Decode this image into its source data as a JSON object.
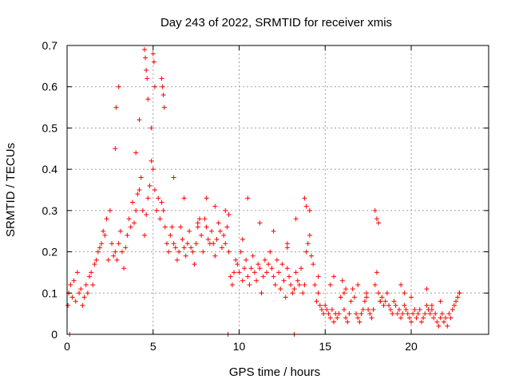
{
  "chart_data": {
    "type": "scatter",
    "title": "Day 243 of 2022, SRMTID for receiver xmis",
    "xlabel": "GPS time / hours",
    "ylabel": "SRMTID / TECUs",
    "xlim": [
      0,
      24.5
    ],
    "ylim": [
      0,
      0.7
    ],
    "x_ticks": [
      0,
      5,
      10,
      15,
      20
    ],
    "x_tick_labels": [
      "0",
      "5",
      "10",
      "15",
      "20"
    ],
    "y_ticks": [
      0,
      0.1,
      0.2,
      0.3,
      0.4,
      0.5,
      0.6,
      0.7
    ],
    "y_tick_labels": [
      "0",
      "0.1",
      "0.2",
      "0.3",
      "0.4",
      "0.5",
      "0.6",
      "0.7"
    ],
    "grid": true,
    "marker": "+",
    "color": "#ff0000",
    "series": [
      {
        "name": "SRMTID",
        "x": [
          0.05,
          0.1,
          0.2,
          0.3,
          0.4,
          0.5,
          0.6,
          0.7,
          0.8,
          0.9,
          1.0,
          1.1,
          1.2,
          1.3,
          1.4,
          1.5,
          1.6,
          1.7,
          1.8,
          1.9,
          2.0,
          2.1,
          2.2,
          2.3,
          2.4,
          2.5,
          2.6,
          2.7,
          2.8,
          2.9,
          3.0,
          3.1,
          3.2,
          3.3,
          3.4,
          3.5,
          3.6,
          3.7,
          3.8,
          3.9,
          4.0,
          4.1,
          4.2,
          4.3,
          4.4,
          4.5,
          4.6,
          4.7,
          4.8,
          4.9,
          5.0,
          5.1,
          5.2,
          5.3,
          5.4,
          5.5,
          5.6,
          5.7,
          5.8,
          5.9,
          6.0,
          6.1,
          6.2,
          6.3,
          6.4,
          6.5,
          6.6,
          6.7,
          6.8,
          6.9,
          7.0,
          7.1,
          7.2,
          7.3,
          7.4,
          7.5,
          7.6,
          7.7,
          7.8,
          7.9,
          8.0,
          8.1,
          8.2,
          8.3,
          8.4,
          8.5,
          8.6,
          8.7,
          8.8,
          8.9,
          9.0,
          9.1,
          9.2,
          9.3,
          9.4,
          9.5,
          9.6,
          9.7,
          9.8,
          9.9,
          10.0,
          10.1,
          10.2,
          10.3,
          10.4,
          10.5,
          10.6,
          10.7,
          10.8,
          10.9,
          11.0,
          11.1,
          11.2,
          11.3,
          11.4,
          11.5,
          11.6,
          11.7,
          11.8,
          11.9,
          12.0,
          12.1,
          12.2,
          12.3,
          12.4,
          12.5,
          12.6,
          12.7,
          12.8,
          12.9,
          13.0,
          13.1,
          13.2,
          13.3,
          13.4,
          13.5,
          13.6,
          13.7,
          13.8,
          13.9,
          14.0,
          14.1,
          14.2,
          14.3,
          14.4,
          14.5,
          14.6,
          14.7,
          14.8,
          14.9,
          15.0,
          15.1,
          15.2,
          15.3,
          15.4,
          15.5,
          15.6,
          15.7,
          15.8,
          15.9,
          16.0,
          16.1,
          16.2,
          16.3,
          16.4,
          16.5,
          16.6,
          16.7,
          16.8,
          16.9,
          17.0,
          17.1,
          17.2,
          17.3,
          17.4,
          17.5,
          17.6,
          17.7,
          17.8,
          17.9,
          18.0,
          18.1,
          18.2,
          18.3,
          18.4,
          18.5,
          18.6,
          18.7,
          18.8,
          18.9,
          19.0,
          19.1,
          19.2,
          19.3,
          19.4,
          19.5,
          19.6,
          19.7,
          19.8,
          19.9,
          20.0,
          20.1,
          20.2,
          20.3,
          20.4,
          20.5,
          20.6,
          20.7,
          20.8,
          20.9,
          21.0,
          21.1,
          21.2,
          21.3,
          21.4,
          21.5,
          21.6,
          21.7,
          21.8,
          21.9,
          22.0,
          22.1,
          22.2,
          22.3,
          22.4,
          22.5,
          22.6,
          22.7,
          22.8,
          2.8,
          2.85,
          3.0,
          4.5,
          4.55,
          4.6,
          4.65,
          4.7,
          4.9,
          5.0,
          5.05,
          5.1,
          5.5,
          5.55,
          5.6,
          5.65,
          4.0,
          4.2,
          6.2,
          6.8,
          7.6,
          8.1,
          8.6,
          9.2,
          9.4,
          10.5,
          11.2,
          12.0,
          12.8,
          13.3,
          13.8,
          13.9,
          14.1,
          15.3,
          15.5,
          16.2,
          16.9,
          17.9,
          18.0,
          18.1,
          19.4,
          20.0,
          20.9,
          21.7,
          22.8,
          0.15,
          9.35,
          13.2,
          12.8,
          10.2,
          18.2,
          19.6,
          21.2,
          14.6,
          16.1,
          17.4
        ],
        "y": [
          0.07,
          0.1,
          0.12,
          0.09,
          0.13,
          0.08,
          0.15,
          0.1,
          0.11,
          0.07,
          0.09,
          0.12,
          0.1,
          0.14,
          0.15,
          0.12,
          0.17,
          0.18,
          0.2,
          0.21,
          0.22,
          0.25,
          0.24,
          0.28,
          0.18,
          0.3,
          0.22,
          0.19,
          0.2,
          0.18,
          0.22,
          0.25,
          0.2,
          0.16,
          0.21,
          0.24,
          0.28,
          0.26,
          0.32,
          0.27,
          0.3,
          0.34,
          0.35,
          0.38,
          0.3,
          0.24,
          0.29,
          0.33,
          0.36,
          0.42,
          0.4,
          0.35,
          0.3,
          0.33,
          0.28,
          0.32,
          0.3,
          0.26,
          0.22,
          0.2,
          0.24,
          0.26,
          0.22,
          0.21,
          0.18,
          0.2,
          0.26,
          0.23,
          0.21,
          0.19,
          0.22,
          0.25,
          0.21,
          0.2,
          0.17,
          0.22,
          0.26,
          0.28,
          0.24,
          0.2,
          0.28,
          0.26,
          0.23,
          0.22,
          0.25,
          0.22,
          0.19,
          0.23,
          0.27,
          0.25,
          0.21,
          0.24,
          0.22,
          0.26,
          0.2,
          0.14,
          0.12,
          0.15,
          0.18,
          0.17,
          0.15,
          0.2,
          0.13,
          0.16,
          0.18,
          0.14,
          0.12,
          0.16,
          0.19,
          0.15,
          0.13,
          0.17,
          0.16,
          0.1,
          0.14,
          0.18,
          0.15,
          0.17,
          0.2,
          0.16,
          0.14,
          0.12,
          0.18,
          0.15,
          0.11,
          0.17,
          0.13,
          0.09,
          0.16,
          0.14,
          0.12,
          0.1,
          0.11,
          0.15,
          0.13,
          0.12,
          0.16,
          0.1,
          0.12,
          0.2,
          0.22,
          0.24,
          0.19,
          0.17,
          0.12,
          0.08,
          0.1,
          0.07,
          0.06,
          0.05,
          0.07,
          0.06,
          0.05,
          0.04,
          0.06,
          0.03,
          0.05,
          0.04,
          0.05,
          0.09,
          0.13,
          0.06,
          0.04,
          0.03,
          0.05,
          0.08,
          0.11,
          0.09,
          0.05,
          0.04,
          0.03,
          0.05,
          0.06,
          0.08,
          0.1,
          0.06,
          0.05,
          0.04,
          0.06,
          0.12,
          0.15,
          0.1,
          0.08,
          0.09,
          0.07,
          0.08,
          0.1,
          0.07,
          0.06,
          0.05,
          0.08,
          0.07,
          0.05,
          0.06,
          0.04,
          0.05,
          0.07,
          0.06,
          0.05,
          0.04,
          0.03,
          0.05,
          0.06,
          0.04,
          0.05,
          0.06,
          0.03,
          0.04,
          0.05,
          0.07,
          0.06,
          0.05,
          0.06,
          0.04,
          0.05,
          0.03,
          0.02,
          0.04,
          0.05,
          0.03,
          0.04,
          0.02,
          0.05,
          0.04,
          0.06,
          0.07,
          0.08,
          0.09,
          0.1,
          0.45,
          0.55,
          0.6,
          0.69,
          0.67,
          0.64,
          0.62,
          0.57,
          0.5,
          0.68,
          0.66,
          0.6,
          0.62,
          0.6,
          0.58,
          0.55,
          0.44,
          0.52,
          0.38,
          0.33,
          0.27,
          0.33,
          0.31,
          0.3,
          0.29,
          0.33,
          0.27,
          0.25,
          0.22,
          0.28,
          0.33,
          0.31,
          0.3,
          0.12,
          0.14,
          0.11,
          0.12,
          0.3,
          0.28,
          0.27,
          0.12,
          0.09,
          0.11,
          0.08,
          0.1,
          0.0,
          0.0,
          0.0,
          0.21,
          0.23,
          0.08,
          0.1,
          0.07,
          0.14,
          0.1,
          0.09
        ]
      }
    ]
  }
}
